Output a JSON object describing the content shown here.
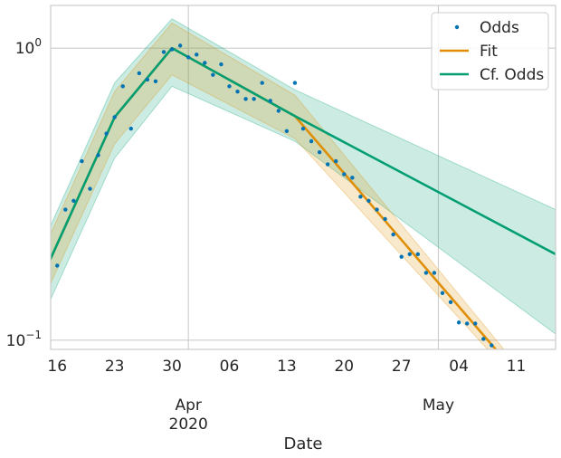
{
  "chart_data": {
    "type": "line",
    "yscale": "log",
    "xlabel": "Date",
    "ylabel": "",
    "x_range": [
      -0.8,
      60.8
    ],
    "ylim": [
      0.093,
      1.4
    ],
    "grid": true,
    "x_ticks": [
      {
        "pos": 0,
        "label": "16"
      },
      {
        "pos": 7,
        "label": "23"
      },
      {
        "pos": 14,
        "label": "30"
      },
      {
        "pos": 21,
        "label": "06"
      },
      {
        "pos": 28,
        "label": "13"
      },
      {
        "pos": 35,
        "label": "20"
      },
      {
        "pos": 42,
        "label": "27"
      },
      {
        "pos": 49,
        "label": "04"
      },
      {
        "pos": 56,
        "label": "11"
      }
    ],
    "x_major": [
      {
        "pos": 16,
        "label": "Apr",
        "sublabel": "2020"
      },
      {
        "pos": 46.5,
        "label": "May",
        "sublabel": ""
      }
    ],
    "y_ticks": [
      {
        "value": 1.0,
        "base": "10",
        "exp": "0"
      },
      {
        "value": 0.1,
        "base": "10",
        "exp": "−1"
      }
    ],
    "legend": {
      "position": "top-right",
      "entries": [
        {
          "label": "Odds",
          "kind": "marker",
          "color": "#0173b2"
        },
        {
          "label": "Fit",
          "kind": "line",
          "color": "#de8f05"
        },
        {
          "label": "Cf. Odds",
          "kind": "line",
          "color": "#029e73"
        }
      ]
    },
    "series": [
      {
        "name": "Odds",
        "kind": "scatter",
        "color": "#0173b2",
        "points": [
          [
            -1,
            0.19
          ],
          [
            0,
            0.18
          ],
          [
            1,
            0.28
          ],
          [
            2,
            0.3
          ],
          [
            3,
            0.41
          ],
          [
            4,
            0.33
          ],
          [
            5,
            0.43
          ],
          [
            6,
            0.51
          ],
          [
            7,
            0.58
          ],
          [
            8,
            0.74
          ],
          [
            9,
            0.53
          ],
          [
            10,
            0.82
          ],
          [
            11,
            0.78
          ],
          [
            12,
            0.77
          ],
          [
            13,
            0.97
          ],
          [
            14,
            0.99
          ],
          [
            15,
            1.02
          ],
          [
            16,
            0.93
          ],
          [
            17,
            0.95
          ],
          [
            18,
            0.89
          ],
          [
            19,
            0.81
          ],
          [
            20,
            0.88
          ],
          [
            21,
            0.74
          ],
          [
            22,
            0.71
          ],
          [
            23,
            0.67
          ],
          [
            24,
            0.67
          ],
          [
            25,
            0.76
          ],
          [
            26,
            0.66
          ],
          [
            27,
            0.61
          ],
          [
            28,
            0.52
          ],
          [
            29,
            0.76
          ],
          [
            30,
            0.53
          ],
          [
            31,
            0.48
          ],
          [
            32,
            0.44
          ],
          [
            33,
            0.4
          ],
          [
            34,
            0.41
          ],
          [
            35,
            0.37
          ],
          [
            36,
            0.36
          ],
          [
            37,
            0.31
          ],
          [
            38,
            0.3
          ],
          [
            39,
            0.28
          ],
          [
            40,
            0.26
          ],
          [
            41,
            0.23
          ],
          [
            42,
            0.193
          ],
          [
            43,
            0.197
          ],
          [
            44,
            0.197
          ],
          [
            45,
            0.17
          ],
          [
            46,
            0.17
          ],
          [
            47,
            0.145
          ],
          [
            48,
            0.135
          ],
          [
            49,
            0.115
          ],
          [
            50,
            0.114
          ],
          [
            51,
            0.114
          ],
          [
            52,
            0.101
          ],
          [
            53,
            0.096
          ]
        ]
      },
      {
        "name": "Fit",
        "kind": "line",
        "color": "#de8f05",
        "points": [
          [
            -1,
            0.185
          ],
          [
            7,
            0.58
          ],
          [
            14,
            1.0
          ],
          [
            29,
            0.585
          ],
          [
            53.5,
            0.093
          ]
        ],
        "band": {
          "upper": [
            [
              -1,
              0.225
            ],
            [
              7,
              0.71
            ],
            [
              14,
              1.22
            ],
            [
              29,
              0.69
            ],
            [
              54.5,
              0.093
            ]
          ],
          "lower": [
            [
              -1,
              0.152
            ],
            [
              7,
              0.47
            ],
            [
              14,
              0.81
            ],
            [
              29,
              0.49
            ],
            [
              52.5,
              0.093
            ]
          ]
        }
      },
      {
        "name": "Cf. Odds",
        "kind": "line",
        "color": "#029e73",
        "points": [
          [
            -1,
            0.185
          ],
          [
            7,
            0.58
          ],
          [
            14,
            1.0
          ],
          [
            29,
            0.585
          ],
          [
            60.8,
            0.197
          ]
        ],
        "band": {
          "upper": [
            [
              -1,
              0.24
            ],
            [
              7,
              0.76
            ],
            [
              14,
              1.26
            ],
            [
              29,
              0.72
            ],
            [
              60.8,
              0.28
            ]
          ],
          "lower": [
            [
              -1,
              0.134
            ],
            [
              7,
              0.42
            ],
            [
              14,
              0.74
            ],
            [
              29,
              0.48
            ],
            [
              60.8,
              0.105
            ]
          ]
        }
      }
    ]
  }
}
